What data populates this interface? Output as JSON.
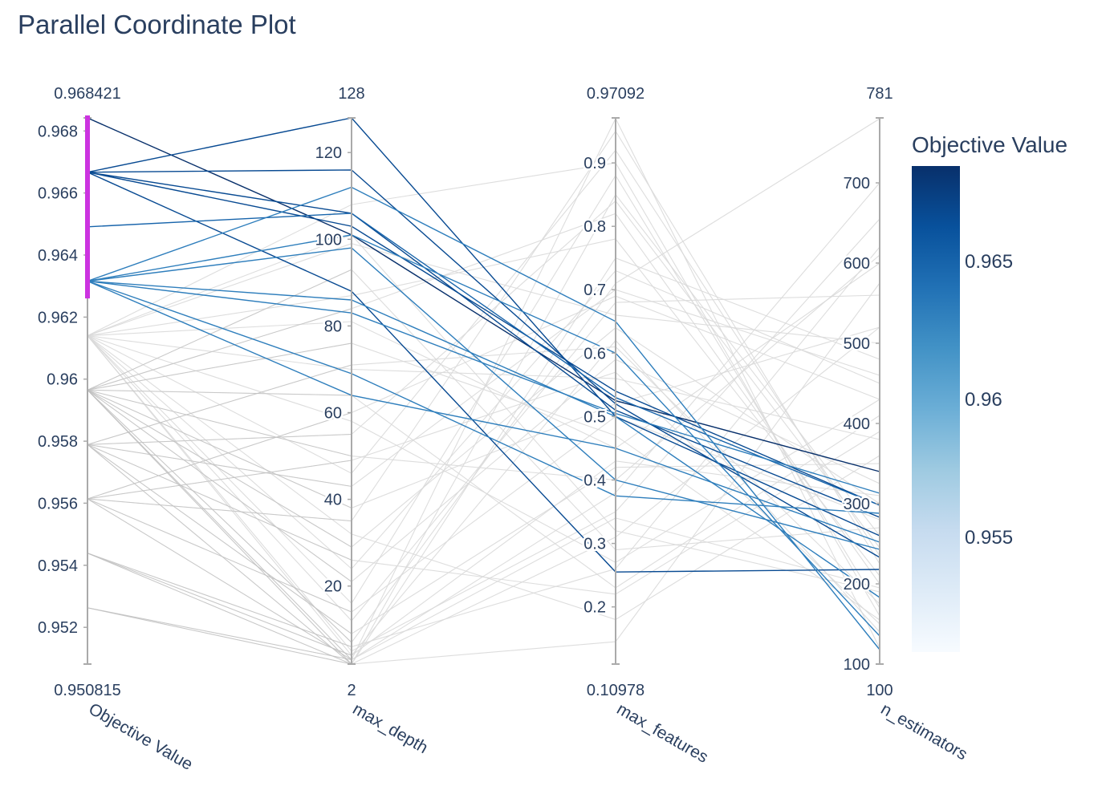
{
  "chart_data": {
    "type": "parallel_coordinates",
    "title": "Parallel Coordinate Plot",
    "dimensions": [
      {
        "name": "Objective Value",
        "range": [
          0.950815,
          0.968421
        ],
        "range_labels": [
          "0.950815",
          "0.968421"
        ],
        "ticks": [
          0.952,
          0.954,
          0.956,
          0.958,
          0.96,
          0.962,
          0.964,
          0.966,
          0.968
        ],
        "tick_labels": [
          "0.952",
          "0.954",
          "0.956",
          "0.958",
          "0.96",
          "0.962",
          "0.964",
          "0.966",
          "0.968"
        ],
        "constraint": [
          0.9626,
          0.9685
        ]
      },
      {
        "name": "max_depth",
        "range": [
          2,
          128
        ],
        "range_labels": [
          "2",
          "128"
        ],
        "ticks": [
          20,
          40,
          60,
          80,
          100,
          120
        ],
        "tick_labels": [
          "20",
          "40",
          "60",
          "80",
          "100",
          "120"
        ]
      },
      {
        "name": "max_features",
        "range": [
          0.10978,
          0.97092
        ],
        "range_labels": [
          "0.10978",
          "0.97092"
        ],
        "ticks": [
          0.2,
          0.3,
          0.4,
          0.5,
          0.6,
          0.7,
          0.8,
          0.9
        ],
        "tick_labels": [
          "0.2",
          "0.3",
          "0.4",
          "0.5",
          "0.6",
          "0.7",
          "0.8",
          "0.9"
        ]
      },
      {
        "name": "n_estimators",
        "range": [
          100,
          781
        ],
        "range_labels": [
          "100",
          "781"
        ],
        "ticks": [
          100,
          200,
          300,
          400,
          500,
          600,
          700
        ],
        "tick_labels": [
          "100",
          "200",
          "300",
          "400",
          "500",
          "600",
          "700"
        ]
      }
    ],
    "selected_lines": [
      [
        0.968421,
        101,
        0.525,
        340
      ],
      [
        0.96667,
        128,
        0.5,
        260
      ],
      [
        0.96667,
        116,
        0.52,
        233
      ],
      [
        0.96667,
        106,
        0.51,
        283
      ],
      [
        0.96667,
        103,
        0.54,
        298
      ],
      [
        0.96667,
        88,
        0.255,
        218
      ],
      [
        0.96491,
        106,
        0.53,
        298
      ],
      [
        0.96316,
        112,
        0.65,
        118
      ],
      [
        0.96316,
        101,
        0.6,
        135
      ],
      [
        0.96316,
        98,
        0.4,
        243
      ],
      [
        0.96316,
        83,
        0.505,
        313
      ],
      [
        0.96316,
        69,
        0.375,
        288
      ],
      [
        0.96316,
        64,
        0.45,
        252
      ],
      [
        0.96316,
        86,
        0.5,
        183
      ]
    ],
    "background_lines": [
      [
        0.9614,
        4,
        0.62,
        140
      ],
      [
        0.9614,
        58,
        0.27,
        430
      ],
      [
        0.9614,
        81,
        0.45,
        600
      ],
      [
        0.9614,
        16,
        0.88,
        170
      ],
      [
        0.9614,
        99,
        0.66,
        500
      ],
      [
        0.9614,
        32,
        0.18,
        360
      ],
      [
        0.9614,
        87,
        0.78,
        210
      ],
      [
        0.9614,
        5,
        0.35,
        655
      ],
      [
        0.9614,
        46,
        0.92,
        235
      ],
      [
        0.9614,
        70,
        0.56,
        380
      ],
      [
        0.9614,
        12,
        0.68,
        560
      ],
      [
        0.9614,
        101,
        0.32,
        190
      ],
      [
        0.9614,
        24,
        0.73,
        450
      ],
      [
        0.9614,
        108,
        0.9,
        160
      ],
      [
        0.95965,
        7,
        0.71,
        780
      ],
      [
        0.95965,
        93,
        0.29,
        270
      ],
      [
        0.95965,
        38,
        0.52,
        520
      ],
      [
        0.95965,
        3,
        0.97,
        120
      ],
      [
        0.95965,
        64,
        0.23,
        410
      ],
      [
        0.95965,
        21,
        0.59,
        325
      ],
      [
        0.95965,
        84,
        0.82,
        200
      ],
      [
        0.95965,
        50,
        0.4,
        610
      ],
      [
        0.95965,
        2,
        0.145,
        575
      ],
      [
        0.95965,
        29,
        0.64,
        300
      ],
      [
        0.95965,
        76,
        0.47,
        155
      ],
      [
        0.95789,
        43,
        0.7,
        460
      ],
      [
        0.95789,
        9,
        0.42,
        350
      ],
      [
        0.95789,
        55,
        0.84,
        245
      ],
      [
        0.95789,
        2,
        0.31,
        520
      ],
      [
        0.95789,
        71,
        0.61,
        175
      ],
      [
        0.95789,
        26,
        0.22,
        390
      ],
      [
        0.95614,
        60,
        0.69,
        430
      ],
      [
        0.95614,
        14,
        0.5,
        280
      ],
      [
        0.95614,
        35,
        0.95,
        225
      ],
      [
        0.95614,
        3,
        0.38,
        700
      ],
      [
        0.95614,
        49,
        0.57,
        150
      ],
      [
        0.95439,
        2,
        0.75,
        480
      ],
      [
        0.95439,
        4,
        0.43,
        310
      ],
      [
        0.95439,
        6,
        0.26,
        620
      ],
      [
        0.95263,
        2,
        0.85,
        260
      ],
      [
        0.95263,
        3,
        0.34,
        195
      ]
    ],
    "colorbar": {
      "title": "Objective Value",
      "range": [
        0.950815,
        0.968421
      ],
      "ticks": [
        0.955,
        0.96,
        0.965
      ],
      "tick_labels": [
        "0.955",
        "0.96",
        "0.965"
      ],
      "colorscale": [
        "#f7fbff",
        "#deebf7",
        "#c6dbef",
        "#9ecae1",
        "#6baed6",
        "#4292c6",
        "#2171b5",
        "#08519c",
        "#08306b"
      ]
    },
    "colors": {
      "axis": "#aaaaaa",
      "background_line": "#d9d9d9",
      "dark_line": "#bdbdbd",
      "constraint": "#cc33e0"
    }
  }
}
